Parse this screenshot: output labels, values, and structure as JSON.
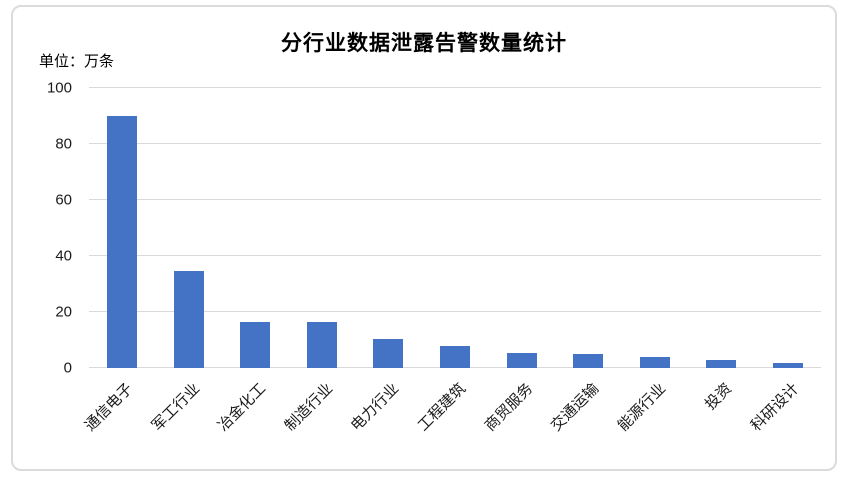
{
  "chart_data": {
    "type": "bar",
    "title": "分行业数据泄露告警数量统计",
    "unit_label": "单位：万条",
    "categories": [
      "通信电子",
      "军工行业",
      "冶金化工",
      "制造行业",
      "电力行业",
      "工程建筑",
      "商贸服务",
      "交通运输",
      "能源行业",
      "投资",
      "科研设计"
    ],
    "values": [
      90,
      34.5,
      16.5,
      16.5,
      10.5,
      8,
      5.5,
      5,
      4,
      3,
      1.7
    ],
    "xlabel": "",
    "ylabel": "",
    "ylim": [
      0,
      100
    ],
    "yticks": [
      0,
      20,
      40,
      60,
      80,
      100
    ],
    "grid": true,
    "legend_position": "none",
    "label_rotation_deg": 45,
    "colors": {
      "bar": "#4472C4",
      "gridline": "#d9d9d9",
      "frame_border": "#dbdbdb",
      "text": "#1a1a1a",
      "title_text": "#000000"
    }
  }
}
